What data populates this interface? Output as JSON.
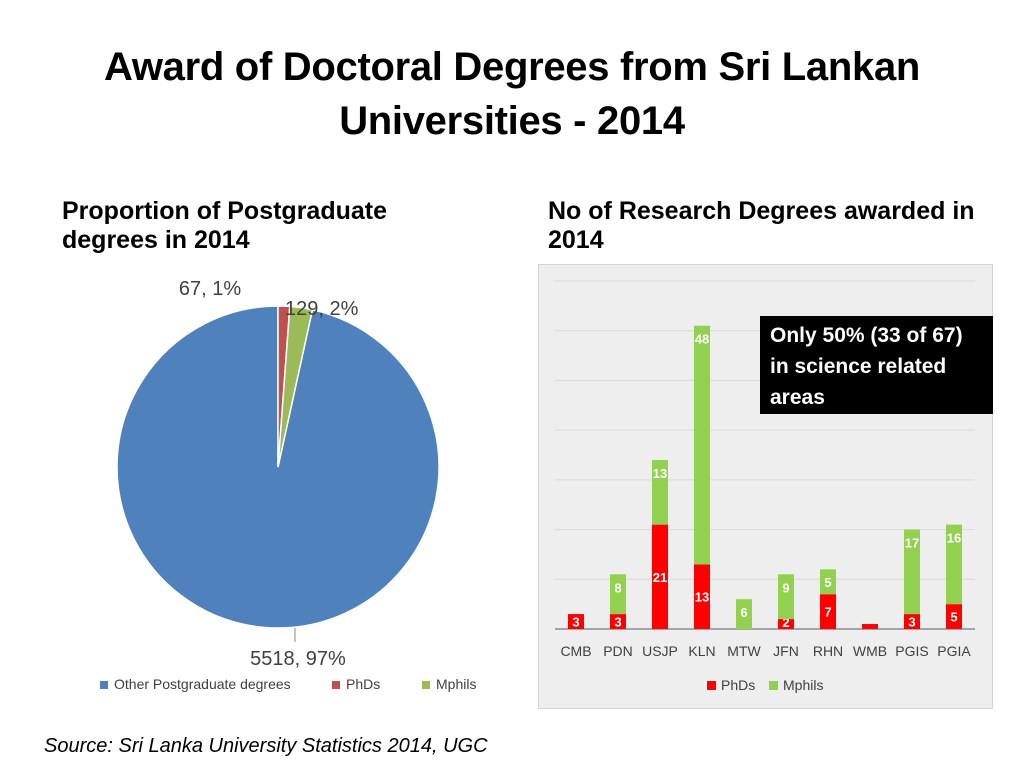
{
  "title": "Award of Doctoral Degrees from Sri Lankan Universities - 2014",
  "source": "Source: Sri Lanka University Statistics 2014, UGC",
  "callout": "Only 50% (33 of 67) in science related areas",
  "chart_data": [
    {
      "type": "pie",
      "title": "Proportion of Postgraduate degrees in 2014",
      "slices": [
        {
          "name": "Other Postgraduate degrees",
          "value": 5518,
          "label": "5518, 97%",
          "color": "#4f81bd"
        },
        {
          "name": "PhDs",
          "value": 67,
          "label": "67, 1%",
          "color": "#c0504d"
        },
        {
          "name": "Mphils",
          "value": 129,
          "label": "129, 2%",
          "color": "#9bbb59"
        }
      ],
      "legend": "bottom"
    },
    {
      "type": "bar",
      "stacked": true,
      "title": "No of Research Degrees awarded in 2014",
      "categories": [
        "CMB",
        "PDN",
        "USJP",
        "KLN",
        "MTW",
        "JFN",
        "RHN",
        "WMB",
        "PGIS",
        "PGIA"
      ],
      "series": [
        {
          "name": "PhDs",
          "color": "#ff0000",
          "values": [
            3,
            3,
            21,
            13,
            0,
            2,
            7,
            1,
            3,
            5
          ],
          "labels": [
            "3",
            "3",
            "21",
            "13",
            "",
            "2",
            "7",
            "",
            "3",
            "5"
          ]
        },
        {
          "name": "Mphils",
          "color": "#92d050",
          "values": [
            0,
            8,
            13,
            48,
            6,
            9,
            5,
            0,
            17,
            16
          ],
          "labels": [
            "",
            "8",
            "13",
            "48",
            "6",
            "9",
            "5",
            "",
            "17",
            "16"
          ]
        }
      ],
      "ylim": [
        0,
        70
      ],
      "grid": true,
      "legend": "bottom"
    }
  ]
}
